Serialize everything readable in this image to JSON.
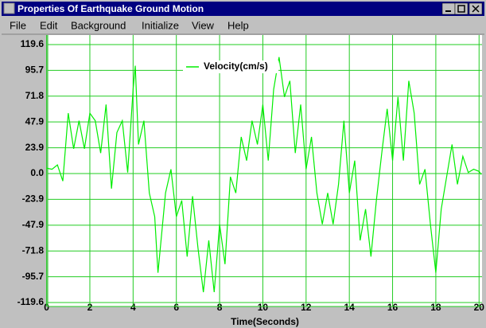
{
  "window": {
    "title": "Properties Of Earthquake Ground Motion"
  },
  "menu": [
    "File",
    "Edit",
    "Background",
    "Initialize",
    "View",
    "Help"
  ],
  "chart_data": {
    "type": "line",
    "x_label": "Time(Seconds)",
    "x": [
      0,
      0.25,
      0.5,
      0.75,
      1.0,
      1.25,
      1.5,
      1.75,
      2.0,
      2.25,
      2.5,
      2.75,
      3.0,
      3.25,
      3.5,
      3.75,
      4.0,
      4.1,
      4.25,
      4.5,
      4.75,
      5.0,
      5.15,
      5.5,
      5.75,
      6.0,
      6.25,
      6.5,
      6.75,
      7.0,
      7.25,
      7.5,
      7.75,
      8.0,
      8.25,
      8.5,
      8.75,
      9.0,
      9.25,
      9.5,
      9.75,
      10.0,
      10.25,
      10.5,
      10.75,
      11.0,
      11.25,
      11.5,
      11.75,
      12.0,
      12.25,
      12.5,
      12.75,
      13.0,
      13.25,
      13.5,
      13.75,
      14.0,
      14.25,
      14.5,
      14.75,
      15.0,
      15.25,
      15.5,
      15.75,
      16.0,
      16.25,
      16.5,
      16.75,
      17.0,
      17.25,
      17.5,
      17.75,
      18.0,
      18.25,
      18.5,
      18.75,
      19.0,
      19.25,
      19.5,
      19.75,
      20.0,
      20.1
    ],
    "series": [
      {
        "name": "Velocity(cm/s)",
        "color": "#00ee00",
        "values": [
          5,
          4,
          8,
          -7,
          56,
          23,
          49,
          23,
          56,
          49,
          19,
          64,
          -14,
          38,
          49,
          1,
          78,
          100,
          27,
          49,
          -18,
          -40,
          -92,
          -18,
          4,
          -40,
          -25,
          -77,
          -21,
          -69,
          -110,
          -62,
          -110,
          -47,
          -84,
          -3,
          -18,
          34,
          12,
          49,
          27,
          64,
          12,
          78,
          108,
          71,
          86,
          19,
          64,
          4,
          34,
          -18,
          -47,
          -18,
          -47,
          -10,
          49,
          -18,
          12,
          -62,
          -33,
          -77,
          -25,
          19,
          60,
          12,
          71,
          12,
          86,
          56,
          -10,
          4,
          -47,
          -92,
          -33,
          -3,
          27,
          -10,
          16,
          1,
          4,
          2,
          -1
        ]
      }
    ],
    "xlim": [
      0,
      20.1
    ],
    "xticks": [
      0,
      2,
      4,
      6,
      8,
      10,
      12,
      14,
      16,
      18,
      20
    ],
    "ylim": [
      -119.6,
      119.6
    ],
    "yticks": [
      119.6,
      95.7,
      71.8,
      47.9,
      23.9,
      {
        "value": 0,
        "label": "0.0"
      },
      -23.9,
      -47.9,
      -71.8,
      -95.7,
      -119.6
    ],
    "grid": true,
    "grid_color": "#22cc22",
    "legend": "top"
  }
}
